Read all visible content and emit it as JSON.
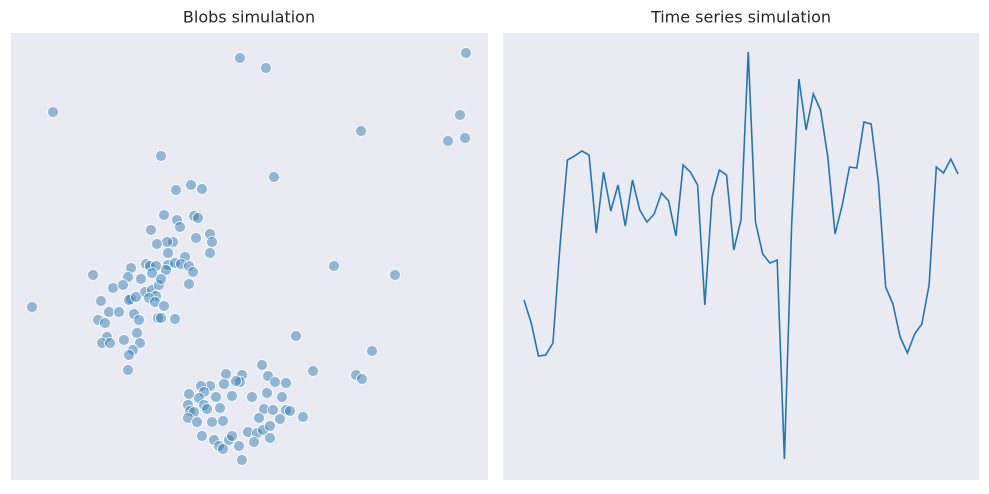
{
  "chart_data": [
    {
      "type": "scatter",
      "title": "Blobs simulation",
      "color": "#1f77b4",
      "xlim": [
        0,
        477
      ],
      "ylim": [
        0,
        447
      ],
      "x": [
        42,
        229,
        255,
        455,
        449,
        454,
        437,
        350,
        150,
        263,
        323,
        384,
        21,
        285,
        361,
        302,
        345,
        351,
        82,
        165,
        180,
        191,
        153,
        166,
        183,
        187,
        169,
        140,
        162,
        156,
        146,
        185,
        199,
        201,
        157,
        174,
        199,
        135,
        139,
        145,
        157,
        164,
        170,
        178,
        120,
        117,
        130,
        141,
        155,
        182,
        102,
        112,
        134,
        141,
        148,
        145,
        150,
        178,
        90,
        120,
        118,
        125,
        138,
        144,
        153,
        98,
        108,
        123,
        87,
        94,
        128,
        147,
        150,
        164,
        126,
        96,
        91,
        99,
        113,
        129,
        122,
        118,
        117,
        251,
        215,
        231,
        257,
        199,
        190,
        229,
        213,
        225,
        264,
        275,
        178,
        193,
        205,
        188,
        221,
        241,
        256,
        271,
        177,
        193,
        209,
        179,
        183,
        196,
        253,
        262,
        275,
        279,
        292,
        177,
        186,
        201,
        212,
        248,
        269,
        191,
        203,
        218,
        208,
        212,
        228,
        237,
        246,
        252,
        259,
        259,
        243,
        231,
        221
      ],
      "values": [
        368,
        422,
        412,
        427,
        365,
        342,
        339,
        349,
        324,
        303,
        214,
        205,
        173,
        144,
        129,
        109,
        105,
        101,
        205,
        290,
        295,
        291,
        265,
        260,
        264,
        262,
        253,
        250,
        238,
        238,
        236,
        242,
        246,
        238,
        227,
        223,
        227,
        216,
        214,
        214,
        215,
        217,
        216,
        214,
        212,
        203,
        201,
        207,
        210,
        208,
        192,
        195,
        188,
        190,
        195,
        184,
        201,
        196,
        179,
        181,
        180,
        183,
        182,
        178,
        174,
        168,
        168,
        166,
        160,
        157,
        160,
        162,
        162,
        161,
        147,
        143,
        137,
        137,
        140,
        137,
        130,
        125,
        110,
        115,
        106,
        105,
        104,
        94,
        94,
        98,
        96,
        99,
        98,
        97,
        86,
        88,
        83,
        82,
        84,
        83,
        87,
        83,
        75,
        75,
        72,
        69,
        68,
        71,
        71,
        70,
        70,
        69,
        63,
        62,
        58,
        58,
        59,
        62,
        61,
        44,
        40,
        40,
        34,
        31,
        34,
        48,
        47,
        50,
        54,
        42,
        38,
        20,
        44
      ]
    },
    {
      "type": "line",
      "title": "Time series simulation",
      "color": "#1f77b4",
      "xlim": [
        -2.9,
        62.9
      ],
      "ylim": [
        -3.6,
        5.34
      ],
      "x": [
        0,
        1,
        2,
        3,
        4,
        5,
        6,
        7,
        8,
        9,
        10,
        11,
        12,
        13,
        14,
        15,
        16,
        17,
        18,
        19,
        20,
        21,
        22,
        23,
        24,
        25,
        26,
        27,
        28,
        29,
        30,
        31,
        32,
        33,
        34,
        35,
        36,
        37,
        38,
        39,
        40,
        41,
        42,
        43,
        44,
        45,
        46,
        47,
        48,
        49,
        50,
        51,
        52,
        53,
        54,
        55,
        56,
        57,
        58,
        59,
        60
      ],
      "values": [
        0,
        -0.46,
        -1.12,
        -1.1,
        -0.86,
        1.12,
        2.8,
        2.88,
        2.98,
        2.9,
        1.34,
        2.56,
        1.78,
        2.3,
        1.48,
        2.4,
        1.8,
        1.56,
        1.72,
        2.14,
        1.98,
        1.28,
        2.7,
        2.56,
        2.3,
        -0.1,
        2.06,
        2.6,
        2.5,
        1.0,
        1.6,
        4.96,
        1.56,
        0.92,
        0.74,
        0.8,
        -3.18,
        1.5,
        4.42,
        3.4,
        4.12,
        3.8,
        2.86,
        1.32,
        1.9,
        2.66,
        2.64,
        3.56,
        3.52,
        2.34,
        0.26,
        -0.08,
        -0.74,
        -1.06,
        -0.68,
        -0.48,
        0.3,
        2.66,
        2.54,
        2.82,
        2.52
      ]
    }
  ]
}
